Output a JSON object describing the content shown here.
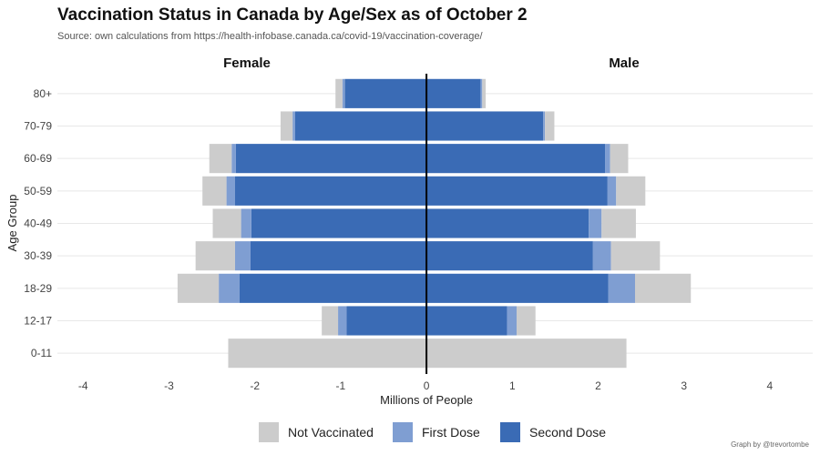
{
  "chart_data": {
    "type": "bar",
    "title": "Vaccination Status in Canada by Age/Sex as of October 2",
    "subtitle": "Source: own calculations from https://health-infobase.canada.ca/covid-19/vaccination-coverage/",
    "xlabel": "Millions of People",
    "ylabel": "Age Group",
    "xlim": [
      -4.3,
      4.5
    ],
    "xticks": [
      -4,
      -3,
      -2,
      -1,
      0,
      1,
      2,
      3,
      4
    ],
    "panel_labels": {
      "left": "Female",
      "right": "Male"
    },
    "categories": [
      "0-11",
      "12-17",
      "18-29",
      "30-39",
      "40-49",
      "50-59",
      "60-69",
      "70-79",
      "80+"
    ],
    "stacking": "stacked outward from zero; Female values plotted to the left (negative), Male to the right",
    "series": [
      {
        "name": "Second Dose",
        "color": "#3a6bb5",
        "female": [
          0,
          0.93,
          2.18,
          2.05,
          2.04,
          2.23,
          2.22,
          1.53,
          0.95
        ],
        "male": [
          0,
          0.94,
          2.12,
          1.94,
          1.89,
          2.11,
          2.08,
          1.36,
          0.63
        ]
      },
      {
        "name": "First Dose",
        "color": "#7f9ed2",
        "female": [
          0,
          0.1,
          0.24,
          0.18,
          0.12,
          0.1,
          0.05,
          0.03,
          0.03
        ],
        "male": [
          0,
          0.11,
          0.31,
          0.21,
          0.15,
          0.1,
          0.06,
          0.02,
          0.02
        ]
      },
      {
        "name": "Not Vaccinated",
        "color": "#cccccc",
        "female": [
          2.31,
          0.19,
          0.48,
          0.46,
          0.33,
          0.28,
          0.26,
          0.14,
          0.08
        ],
        "male": [
          2.33,
          0.22,
          0.65,
          0.57,
          0.4,
          0.34,
          0.21,
          0.11,
          0.04
        ]
      }
    ],
    "legend": {
      "position": "bottom",
      "order": [
        "Not Vaccinated",
        "First Dose",
        "Second Dose"
      ]
    },
    "grid": true
  },
  "credit": "Graph by @trevortombe"
}
